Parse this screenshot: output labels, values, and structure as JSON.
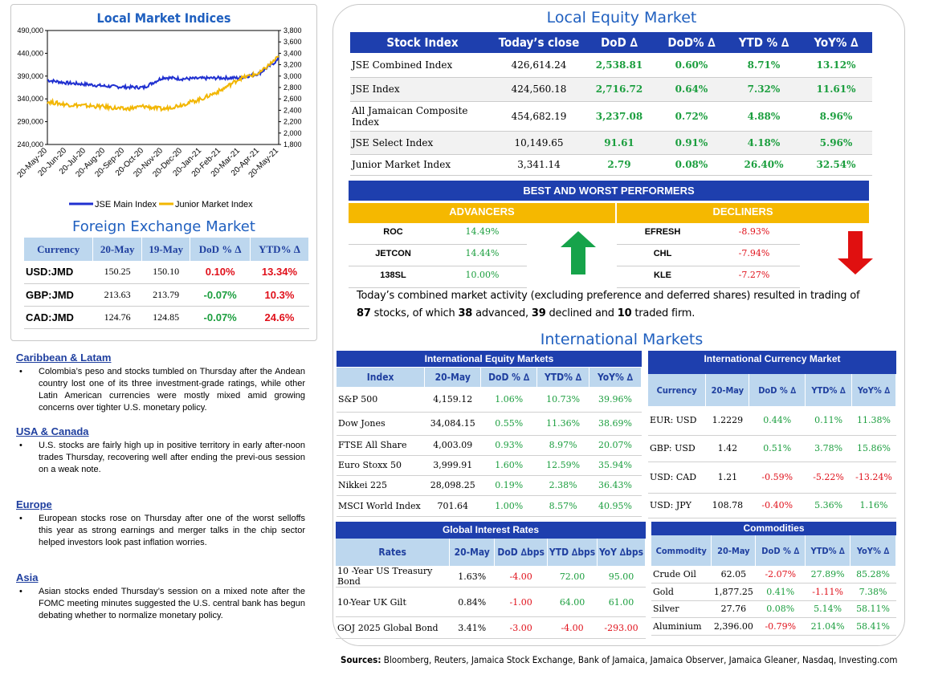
{
  "chart_data": {
    "type": "line",
    "title": "Local Market Indices",
    "x": [
      "20-May-20",
      "20-Jun-20",
      "20-Jul-20",
      "20-Aug-20",
      "20-Sep-20",
      "20-Oct-20",
      "20-Nov-20",
      "20-Dec-20",
      "20-Jan-21",
      "20-Feb-21",
      "20-Mar-21",
      "20-Apr-21",
      "20-May-21"
    ],
    "series": [
      {
        "name": "JSE Main Index",
        "axis": "left",
        "color": "#2030d0",
        "values": [
          381000,
          375000,
          372000,
          368000,
          366000,
          365000,
          387000,
          384000,
          385000,
          386000,
          386000,
          396000,
          426614
        ]
      },
      {
        "name": "Junior Market Index",
        "axis": "right",
        "color": "#f2b600",
        "values": [
          2550,
          2500,
          2480,
          2460,
          2420,
          2470,
          2420,
          2500,
          2600,
          2750,
          2960,
          3050,
          3341
        ]
      }
    ],
    "ylim_left": [
      240000,
      490000
    ],
    "yticks_left": [
      "490,000",
      "440,000",
      "390,000",
      "340,000",
      "290,000",
      "240,000"
    ],
    "ylim_right": [
      1800,
      3800
    ],
    "yticks_right": [
      "3,800",
      "3,600",
      "3,400",
      "3,200",
      "3,000",
      "2,800",
      "2,600",
      "2,400",
      "2,200",
      "2,000",
      "1,800"
    ],
    "grid": false,
    "legend": "bottom"
  },
  "fx": {
    "title": "Foreign Exchange Market",
    "headers": [
      "Currency",
      "20-May",
      "19-May",
      "DoD % ∆",
      "YTD% ∆"
    ],
    "rows": [
      {
        "cur": "USD:JMD",
        "a": "150.25",
        "b": "150.10",
        "dod": "0.10%",
        "ytd": "13.34%",
        "dodc": "neg",
        "ytdc": "neg"
      },
      {
        "cur": "GBP:JMD",
        "a": "213.63",
        "b": "213.79",
        "dod": "-0.07%",
        "ytd": "10.3%",
        "dodc": "pos",
        "ytdc": "neg"
      },
      {
        "cur": "CAD:JMD",
        "a": "124.76",
        "b": "124.85",
        "dod": "-0.07%",
        "ytd": "24.6%",
        "dodc": "pos",
        "ytdc": "neg"
      }
    ]
  },
  "news": [
    {
      "h": "Caribbean & Latam",
      "t": "Colombia’s peso and stocks tumbled on Thursday after the Andean country lost one of its three investment-grade ratings, while other Latin American currencies were mostly mixed amid growing concerns over tighter U.S. monetary policy."
    },
    {
      "h": "USA & Canada",
      "t": "U.S. stocks are fairly high up in positive territory in early after-noon trades Thursday, recovering well after ending the previ-ous session on a weak note."
    },
    {
      "h": "Europe",
      "t": "European stocks rose on Thursday after one of the worst selloffs this year as strong earnings and merger talks in the chip sector helped investors look past inflation worries."
    },
    {
      "h": "Asia",
      "t": "Asian stocks ended Thursday’s session on a mixed note after the FOMC meeting minutes suggested the U.S. central bank has begun debating whether to normalize monetary policy."
    }
  ],
  "equity": {
    "title": "Local Equity Market",
    "headers": [
      "Stock Index",
      "Today’s close",
      "DoD  ∆",
      "DoD% ∆",
      "YTD % ∆",
      "YoY% ∆"
    ],
    "rows": [
      [
        "JSE Combined Index",
        "426,614.24",
        "2,538.81",
        "0.60%",
        "8.71%",
        "13.12%"
      ],
      [
        "JSE Index",
        "424,560.18",
        "2,716.72",
        "0.64%",
        "7.32%",
        "11.61%"
      ],
      [
        "All Jamaican Composite Index",
        "454,682.19",
        "3,237.08",
        "0.72%",
        "4.88%",
        "8.96%"
      ],
      [
        "JSE Select Index",
        "10,149.65",
        "91.61",
        "0.91%",
        "4.18%",
        "5.96%"
      ],
      [
        "Junior Market Index",
        "3,341.14",
        "2.79",
        "0.08%",
        "26.40%",
        "32.54%"
      ]
    ]
  },
  "performers": {
    "title": "BEST AND WORST PERFORMERS",
    "adv_label": "ADVANCERS",
    "dec_label": "DECLINERS",
    "advancers": [
      [
        "ROC",
        "14.49%"
      ],
      [
        "JETCON",
        "14.44%"
      ],
      [
        "138SL",
        "10.00%"
      ]
    ],
    "decliners": [
      [
        "EFRESH",
        "-8.93%"
      ],
      [
        "CHL",
        "-7.94%"
      ],
      [
        "KLE",
        "-7.27%"
      ]
    ]
  },
  "summary": {
    "p1": "Today’s combined market activity (excluding preference and deferred shares) resulted in trading of ",
    "n1": "87",
    "p2": " stocks, of which ",
    "n2": "38",
    "p3": " advanced, ",
    "n3": "39",
    "p4": " declined and ",
    "n4": "10",
    "p5": " traded firm."
  },
  "intl_title": "International Markets",
  "ieq": {
    "title": "International Equity Markets",
    "headers": [
      "Index",
      "20-May",
      "DoD % ∆",
      "YTD% ∆",
      "YoY% ∆"
    ],
    "rows": [
      [
        "S&P 500",
        "4,159.12",
        "1.06%",
        "10.73%",
        "39.96%"
      ],
      [
        "Dow Jones",
        "34,084.15",
        "0.55%",
        "11.36%",
        "38.69%"
      ],
      [
        "FTSE All Share",
        "4,003.09",
        "0.93%",
        "8.97%",
        "20.07%"
      ],
      [
        "Euro Stoxx 50",
        "3,999.91",
        "1.60%",
        "12.59%",
        "35.94%"
      ],
      [
        "Nikkei 225",
        "28,098.25",
        "0.19%",
        "2.38%",
        "36.43%"
      ],
      [
        "MSCI World Index",
        "701.64",
        "1.00%",
        "8.57%",
        "40.95%"
      ]
    ]
  },
  "icur": {
    "title": "International Currency Market",
    "headers": [
      "Currency",
      "20-May",
      "DoD % ∆",
      "YTD% ∆",
      "YoY% ∆"
    ],
    "rows": [
      [
        "EUR: USD",
        "1.2229",
        "0.44%",
        "0.11%",
        "11.38%"
      ],
      [
        "GBP: USD",
        "1.42",
        "0.51%",
        "3.78%",
        "15.86%"
      ],
      [
        "USD: CAD",
        "1.21",
        "-0.59%",
        "-5.22%",
        "-13.24%"
      ],
      [
        "USD: JPY",
        "108.78",
        "-0.40%",
        "5.36%",
        "1.16%"
      ]
    ]
  },
  "rates": {
    "title": "Global Interest Rates",
    "headers": [
      "Rates",
      "20-May",
      "DoD ∆bps",
      "YTD ∆bps",
      "YoY ∆bps"
    ],
    "rows": [
      [
        "10 -Year US Treasury Bond",
        "1.63%",
        "-4.00",
        "72.00",
        "95.00"
      ],
      [
        "10-Year UK Gilt",
        "0.84%",
        "-1.00",
        "64.00",
        "61.00"
      ],
      [
        "GOJ 2025 Global Bond",
        "3.41%",
        "-3.00",
        "-4.00",
        "-293.00"
      ]
    ]
  },
  "comm": {
    "title": "Commodities",
    "headers": [
      "Commodity",
      "20-May",
      "DoD % ∆",
      "YTD% ∆",
      "YoY% ∆"
    ],
    "rows": [
      [
        "Crude Oil",
        "62.05",
        "-2.07%",
        "27.89%",
        "85.28%"
      ],
      [
        "Gold",
        "1,877.25",
        "0.41%",
        "-1.11%",
        "7.38%"
      ],
      [
        "Silver",
        "27.76",
        "0.08%",
        "5.14%",
        "58.11%"
      ],
      [
        "Aluminium",
        "2,396.00",
        "-0.79%",
        "21.04%",
        "58.41%"
      ]
    ]
  },
  "sources": {
    "label": "Sources:",
    "text": " Bloomberg, Reuters, Jamaica Stock Exchange, Bank of Jamaica, Jamaica Observer, Jamaica Gleaner, Nasdaq, Investing.com"
  }
}
